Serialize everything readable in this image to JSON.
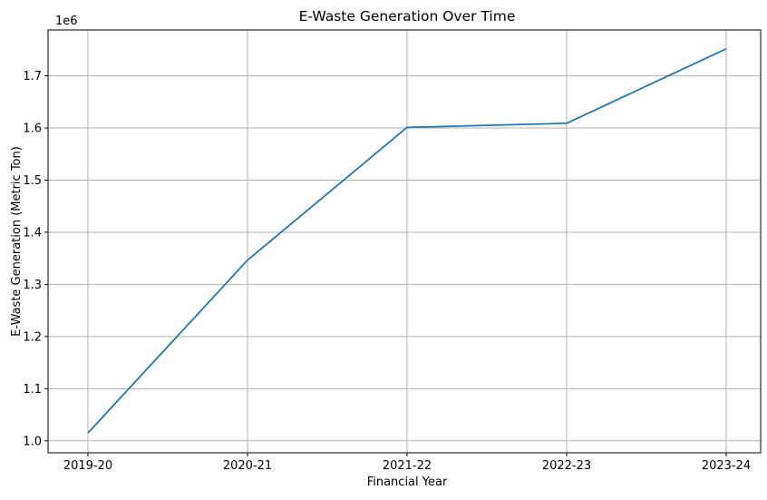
{
  "chart_data": {
    "type": "line",
    "title": "E-Waste Generation Over Time",
    "xlabel": "Financial Year",
    "ylabel": "E-Waste Generation (Metric Ton)",
    "y_offset_label": "1e6",
    "categories": [
      "2019-20",
      "2020-21",
      "2021-22",
      "2022-23",
      "2023-24"
    ],
    "series": [
      {
        "values": [
          1014961,
          1346496,
          1601155,
          1608930,
          1751836
        ],
        "color": "#1f77b4"
      }
    ],
    "ylim": [
      0.977,
      1.788
    ],
    "y_scale": 1000000,
    "y_ticks": [
      1.0,
      1.1,
      1.2,
      1.3,
      1.4,
      1.5,
      1.6,
      1.7
    ],
    "y_tick_labels": [
      "1.0",
      "1.1",
      "1.2",
      "1.3",
      "1.4",
      "1.5",
      "1.6",
      "1.7"
    ],
    "grid": true,
    "grid_color": "#b0b0b0"
  }
}
